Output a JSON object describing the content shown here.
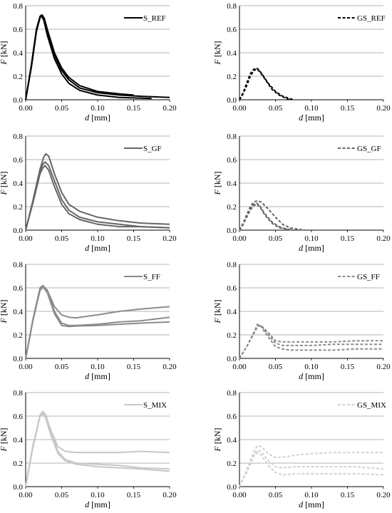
{
  "axes_labels": {
    "x_var": "d",
    "x_unit": " [mm]",
    "y_var": "F",
    "y_unit": " [kN]"
  },
  "chart_data": [
    {
      "type": "line",
      "legend": "S_REF",
      "color": "#000000",
      "dashed": false,
      "xlim": [
        0,
        0.2
      ],
      "ylim": [
        0,
        0.8
      ],
      "grid": true,
      "legend_position": "top-right",
      "series": [
        {
          "x": [
            0,
            0.008,
            0.015,
            0.02,
            0.022,
            0.025,
            0.03,
            0.04,
            0.05,
            0.06,
            0.075,
            0.1,
            0.13,
            0.16,
            0.2
          ],
          "y": [
            0,
            0.3,
            0.6,
            0.71,
            0.72,
            0.7,
            0.58,
            0.38,
            0.25,
            0.17,
            0.1,
            0.06,
            0.04,
            0.03,
            0.02
          ]
        },
        {
          "x": [
            0,
            0.008,
            0.015,
            0.02,
            0.023,
            0.026,
            0.03,
            0.04,
            0.05,
            0.06,
            0.075,
            0.1,
            0.13,
            0.15
          ],
          "y": [
            0,
            0.28,
            0.58,
            0.7,
            0.72,
            0.69,
            0.6,
            0.4,
            0.27,
            0.19,
            0.12,
            0.07,
            0.05,
            0.04
          ]
        },
        {
          "x": [
            0,
            0.008,
            0.015,
            0.02,
            0.022,
            0.025,
            0.03,
            0.04,
            0.05,
            0.06,
            0.075,
            0.1,
            0.13,
            0.175
          ],
          "y": [
            0,
            0.29,
            0.59,
            0.7,
            0.71,
            0.68,
            0.55,
            0.35,
            0.22,
            0.14,
            0.08,
            0.04,
            0.02,
            0.01
          ]
        }
      ]
    },
    {
      "type": "line",
      "legend": "GS_REF",
      "color": "#000000",
      "dashed": true,
      "xlim": [
        0,
        0.2
      ],
      "ylim": [
        0,
        0.8
      ],
      "grid": true,
      "legend_position": "top-right",
      "series": [
        {
          "x": [
            0,
            0.005,
            0.01,
            0.015,
            0.02,
            0.023,
            0.026,
            0.03,
            0.04,
            0.05,
            0.06,
            0.07,
            0.075
          ],
          "y": [
            0,
            0.06,
            0.14,
            0.22,
            0.26,
            0.27,
            0.26,
            0.23,
            0.14,
            0.07,
            0.03,
            0.01,
            0
          ]
        },
        {
          "x": [
            0,
            0.005,
            0.01,
            0.015,
            0.02,
            0.024,
            0.028,
            0.035,
            0.045,
            0.055,
            0.065,
            0.07
          ],
          "y": [
            0,
            0.05,
            0.12,
            0.2,
            0.25,
            0.26,
            0.24,
            0.18,
            0.09,
            0.04,
            0.01,
            0
          ]
        }
      ]
    },
    {
      "type": "line",
      "legend": "S_GF",
      "color": "#666666",
      "dashed": false,
      "xlim": [
        0,
        0.2
      ],
      "ylim": [
        0,
        0.8
      ],
      "grid": true,
      "legend_position": "top-right",
      "series": [
        {
          "x": [
            0,
            0.01,
            0.02,
            0.025,
            0.028,
            0.032,
            0.04,
            0.05,
            0.06,
            0.075,
            0.1,
            0.13,
            0.16,
            0.2
          ],
          "y": [
            0,
            0.25,
            0.52,
            0.62,
            0.65,
            0.63,
            0.48,
            0.32,
            0.22,
            0.16,
            0.11,
            0.08,
            0.06,
            0.05
          ]
        },
        {
          "x": [
            0,
            0.01,
            0.02,
            0.024,
            0.027,
            0.032,
            0.04,
            0.05,
            0.06,
            0.075,
            0.1,
            0.13,
            0.16,
            0.2
          ],
          "y": [
            0,
            0.24,
            0.5,
            0.56,
            0.58,
            0.55,
            0.42,
            0.26,
            0.17,
            0.11,
            0.07,
            0.05,
            0.03,
            0.02
          ]
        },
        {
          "x": [
            0,
            0.01,
            0.02,
            0.024,
            0.027,
            0.032,
            0.04,
            0.05,
            0.06,
            0.075,
            0.1,
            0.13,
            0.16,
            0.2
          ],
          "y": [
            0,
            0.23,
            0.48,
            0.53,
            0.55,
            0.51,
            0.37,
            0.22,
            0.14,
            0.09,
            0.05,
            0.03,
            0.03,
            0.02
          ]
        }
      ]
    },
    {
      "type": "line",
      "legend": "GS_GF",
      "color": "#666666",
      "dashed": true,
      "xlim": [
        0,
        0.2
      ],
      "ylim": [
        0,
        0.8
      ],
      "grid": true,
      "legend_position": "top-right",
      "series": [
        {
          "x": [
            0,
            0.005,
            0.01,
            0.015,
            0.02,
            0.025,
            0.03,
            0.04,
            0.05,
            0.06,
            0.07,
            0.08,
            0.09
          ],
          "y": [
            0,
            0.06,
            0.13,
            0.2,
            0.24,
            0.25,
            0.24,
            0.18,
            0.11,
            0.05,
            0.02,
            0.01,
            0
          ]
        },
        {
          "x": [
            0,
            0.005,
            0.01,
            0.015,
            0.02,
            0.024,
            0.028,
            0.035,
            0.045,
            0.055,
            0.065,
            0.075
          ],
          "y": [
            0,
            0.05,
            0.12,
            0.18,
            0.22,
            0.23,
            0.21,
            0.14,
            0.07,
            0.03,
            0.01,
            0
          ]
        },
        {
          "x": [
            0,
            0.005,
            0.01,
            0.015,
            0.02,
            0.024,
            0.028,
            0.035,
            0.045,
            0.055,
            0.065,
            0.075
          ],
          "y": [
            0,
            0.05,
            0.11,
            0.17,
            0.21,
            0.22,
            0.2,
            0.13,
            0.06,
            0.02,
            0.01,
            0
          ]
        }
      ]
    },
    {
      "type": "line",
      "legend": "S_FF",
      "color": "#8c8c8c",
      "dashed": false,
      "xlim": [
        0,
        0.2
      ],
      "ylim": [
        0,
        0.8
      ],
      "grid": true,
      "legend_position": "top-right",
      "series": [
        {
          "x": [
            0,
            0.01,
            0.02,
            0.025,
            0.03,
            0.04,
            0.05,
            0.06,
            0.07,
            0.1,
            0.13,
            0.16,
            0.2
          ],
          "y": [
            0,
            0.32,
            0.58,
            0.61,
            0.58,
            0.44,
            0.37,
            0.35,
            0.345,
            0.37,
            0.4,
            0.42,
            0.44
          ]
        },
        {
          "x": [
            0,
            0.01,
            0.02,
            0.024,
            0.03,
            0.04,
            0.05,
            0.06,
            0.07,
            0.1,
            0.13,
            0.16,
            0.2
          ],
          "y": [
            0,
            0.33,
            0.6,
            0.62,
            0.58,
            0.4,
            0.3,
            0.28,
            0.28,
            0.29,
            0.31,
            0.32,
            0.35
          ]
        },
        {
          "x": [
            0,
            0.01,
            0.02,
            0.024,
            0.03,
            0.04,
            0.05,
            0.06,
            0.07,
            0.1,
            0.13,
            0.16,
            0.2
          ],
          "y": [
            0,
            0.32,
            0.59,
            0.61,
            0.56,
            0.38,
            0.28,
            0.27,
            0.275,
            0.28,
            0.29,
            0.3,
            0.31
          ]
        }
      ]
    },
    {
      "type": "line",
      "legend": "GS_FF",
      "color": "#8c8c8c",
      "dashed": true,
      "xlim": [
        0,
        0.2
      ],
      "ylim": [
        0,
        0.8
      ],
      "grid": true,
      "legend_position": "top-right",
      "series": [
        {
          "x": [
            0,
            0.01,
            0.02,
            0.025,
            0.03,
            0.04,
            0.05,
            0.06,
            0.07,
            0.1,
            0.13,
            0.16,
            0.2
          ],
          "y": [
            0,
            0.1,
            0.22,
            0.28,
            0.28,
            0.22,
            0.15,
            0.14,
            0.14,
            0.14,
            0.14,
            0.15,
            0.15
          ]
        },
        {
          "x": [
            0,
            0.01,
            0.02,
            0.025,
            0.03,
            0.04,
            0.05,
            0.06,
            0.07,
            0.1,
            0.13,
            0.16,
            0.2
          ],
          "y": [
            0,
            0.1,
            0.21,
            0.27,
            0.28,
            0.2,
            0.13,
            0.11,
            0.11,
            0.11,
            0.12,
            0.12,
            0.12
          ]
        },
        {
          "x": [
            0,
            0.01,
            0.02,
            0.025,
            0.03,
            0.04,
            0.05,
            0.06,
            0.07,
            0.1,
            0.13,
            0.16,
            0.2
          ],
          "y": [
            0,
            0.1,
            0.22,
            0.29,
            0.27,
            0.18,
            0.1,
            0.08,
            0.07,
            0.07,
            0.07,
            0.08,
            0.08
          ]
        }
      ]
    },
    {
      "type": "line",
      "legend": "S_MIX",
      "color": "#c8c8c8",
      "dashed": false,
      "xlim": [
        0,
        0.2
      ],
      "ylim": [
        0,
        0.8
      ],
      "grid": true,
      "legend_position": "top-right",
      "series": [
        {
          "x": [
            0,
            0.01,
            0.02,
            0.024,
            0.028,
            0.035,
            0.045,
            0.055,
            0.07,
            0.1,
            0.13,
            0.16,
            0.2
          ],
          "y": [
            0,
            0.35,
            0.6,
            0.63,
            0.6,
            0.48,
            0.34,
            0.3,
            0.29,
            0.29,
            0.29,
            0.3,
            0.29
          ]
        },
        {
          "x": [
            0,
            0.01,
            0.02,
            0.024,
            0.028,
            0.035,
            0.045,
            0.055,
            0.07,
            0.1,
            0.13,
            0.16,
            0.2
          ],
          "y": [
            0,
            0.34,
            0.61,
            0.64,
            0.61,
            0.47,
            0.3,
            0.23,
            0.2,
            0.19,
            0.18,
            0.16,
            0.15
          ]
        },
        {
          "x": [
            0,
            0.01,
            0.02,
            0.024,
            0.028,
            0.035,
            0.045,
            0.055,
            0.07,
            0.1,
            0.13,
            0.16,
            0.2
          ],
          "y": [
            0,
            0.33,
            0.6,
            0.62,
            0.58,
            0.44,
            0.28,
            0.22,
            0.19,
            0.17,
            0.16,
            0.15,
            0.13
          ]
        }
      ]
    },
    {
      "type": "line",
      "legend": "GS_MIX",
      "color": "#d2d2d2",
      "dashed": true,
      "xlim": [
        0,
        0.2
      ],
      "ylim": [
        0,
        0.8
      ],
      "grid": true,
      "legend_position": "top-right",
      "series": [
        {
          "x": [
            0,
            0.01,
            0.02,
            0.025,
            0.03,
            0.04,
            0.05,
            0.06,
            0.08,
            0.1,
            0.13,
            0.16,
            0.2
          ],
          "y": [
            0,
            0.14,
            0.3,
            0.35,
            0.34,
            0.28,
            0.25,
            0.25,
            0.27,
            0.28,
            0.29,
            0.29,
            0.29
          ]
        },
        {
          "x": [
            0,
            0.01,
            0.02,
            0.025,
            0.03,
            0.04,
            0.05,
            0.06,
            0.08,
            0.1,
            0.13,
            0.16,
            0.2
          ],
          "y": [
            0,
            0.13,
            0.28,
            0.31,
            0.3,
            0.22,
            0.17,
            0.16,
            0.17,
            0.17,
            0.17,
            0.17,
            0.15
          ]
        },
        {
          "x": [
            0,
            0.01,
            0.02,
            0.025,
            0.03,
            0.04,
            0.05,
            0.06,
            0.08,
            0.1,
            0.13,
            0.16,
            0.2
          ],
          "y": [
            0,
            0.12,
            0.26,
            0.29,
            0.27,
            0.18,
            0.12,
            0.1,
            0.11,
            0.11,
            0.11,
            0.11,
            0.1
          ]
        }
      ]
    }
  ]
}
